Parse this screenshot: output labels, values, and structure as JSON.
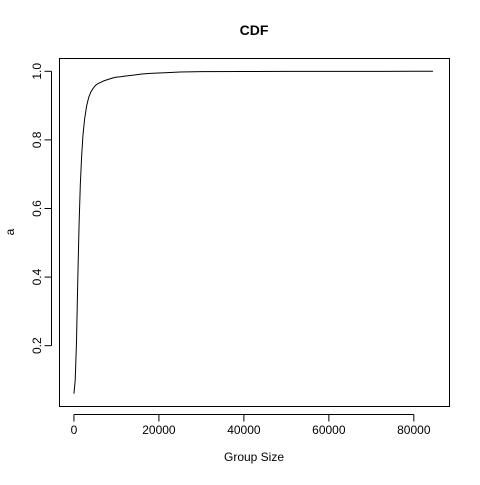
{
  "chart_data": {
    "type": "line",
    "title": "CDF",
    "xlabel": "Group Size",
    "ylabel": "a",
    "xlim": [
      -3400,
      88400
    ],
    "ylim": [
      0.0227,
      1.0373
    ],
    "x_ticks": [
      0,
      20000,
      40000,
      60000,
      80000
    ],
    "x_tick_labels": [
      "0",
      "20000",
      "40000",
      "60000",
      "80000"
    ],
    "y_ticks": [
      0.2,
      0.4,
      0.6,
      0.8,
      1.0
    ],
    "y_tick_labels": [
      "0.2",
      "0.4",
      "0.6",
      "0.8",
      "1.0"
    ],
    "grid": false,
    "legend": "none",
    "series": [
      {
        "name": "CDF",
        "color": "#000000",
        "x": [
          0,
          300,
          600,
          900,
          1200,
          1500,
          1800,
          2100,
          2500,
          3000,
          3500,
          4000,
          4500,
          5000,
          5500,
          6000,
          7000,
          8000,
          9000,
          10000,
          11000,
          12000,
          14000,
          16000,
          18000,
          20000,
          22000,
          25000,
          30000,
          40000,
          50000,
          60000,
          70000,
          80000,
          84500
        ],
        "y": [
          0.06,
          0.1,
          0.21,
          0.39,
          0.55,
          0.67,
          0.75,
          0.81,
          0.86,
          0.9,
          0.925,
          0.94,
          0.95,
          0.958,
          0.963,
          0.966,
          0.972,
          0.976,
          0.98,
          0.983,
          0.984,
          0.986,
          0.989,
          0.992,
          0.994,
          0.995,
          0.996,
          0.998,
          0.999,
          0.9995,
          0.9997,
          0.9998,
          0.9999,
          1.0,
          1.0
        ]
      }
    ]
  }
}
